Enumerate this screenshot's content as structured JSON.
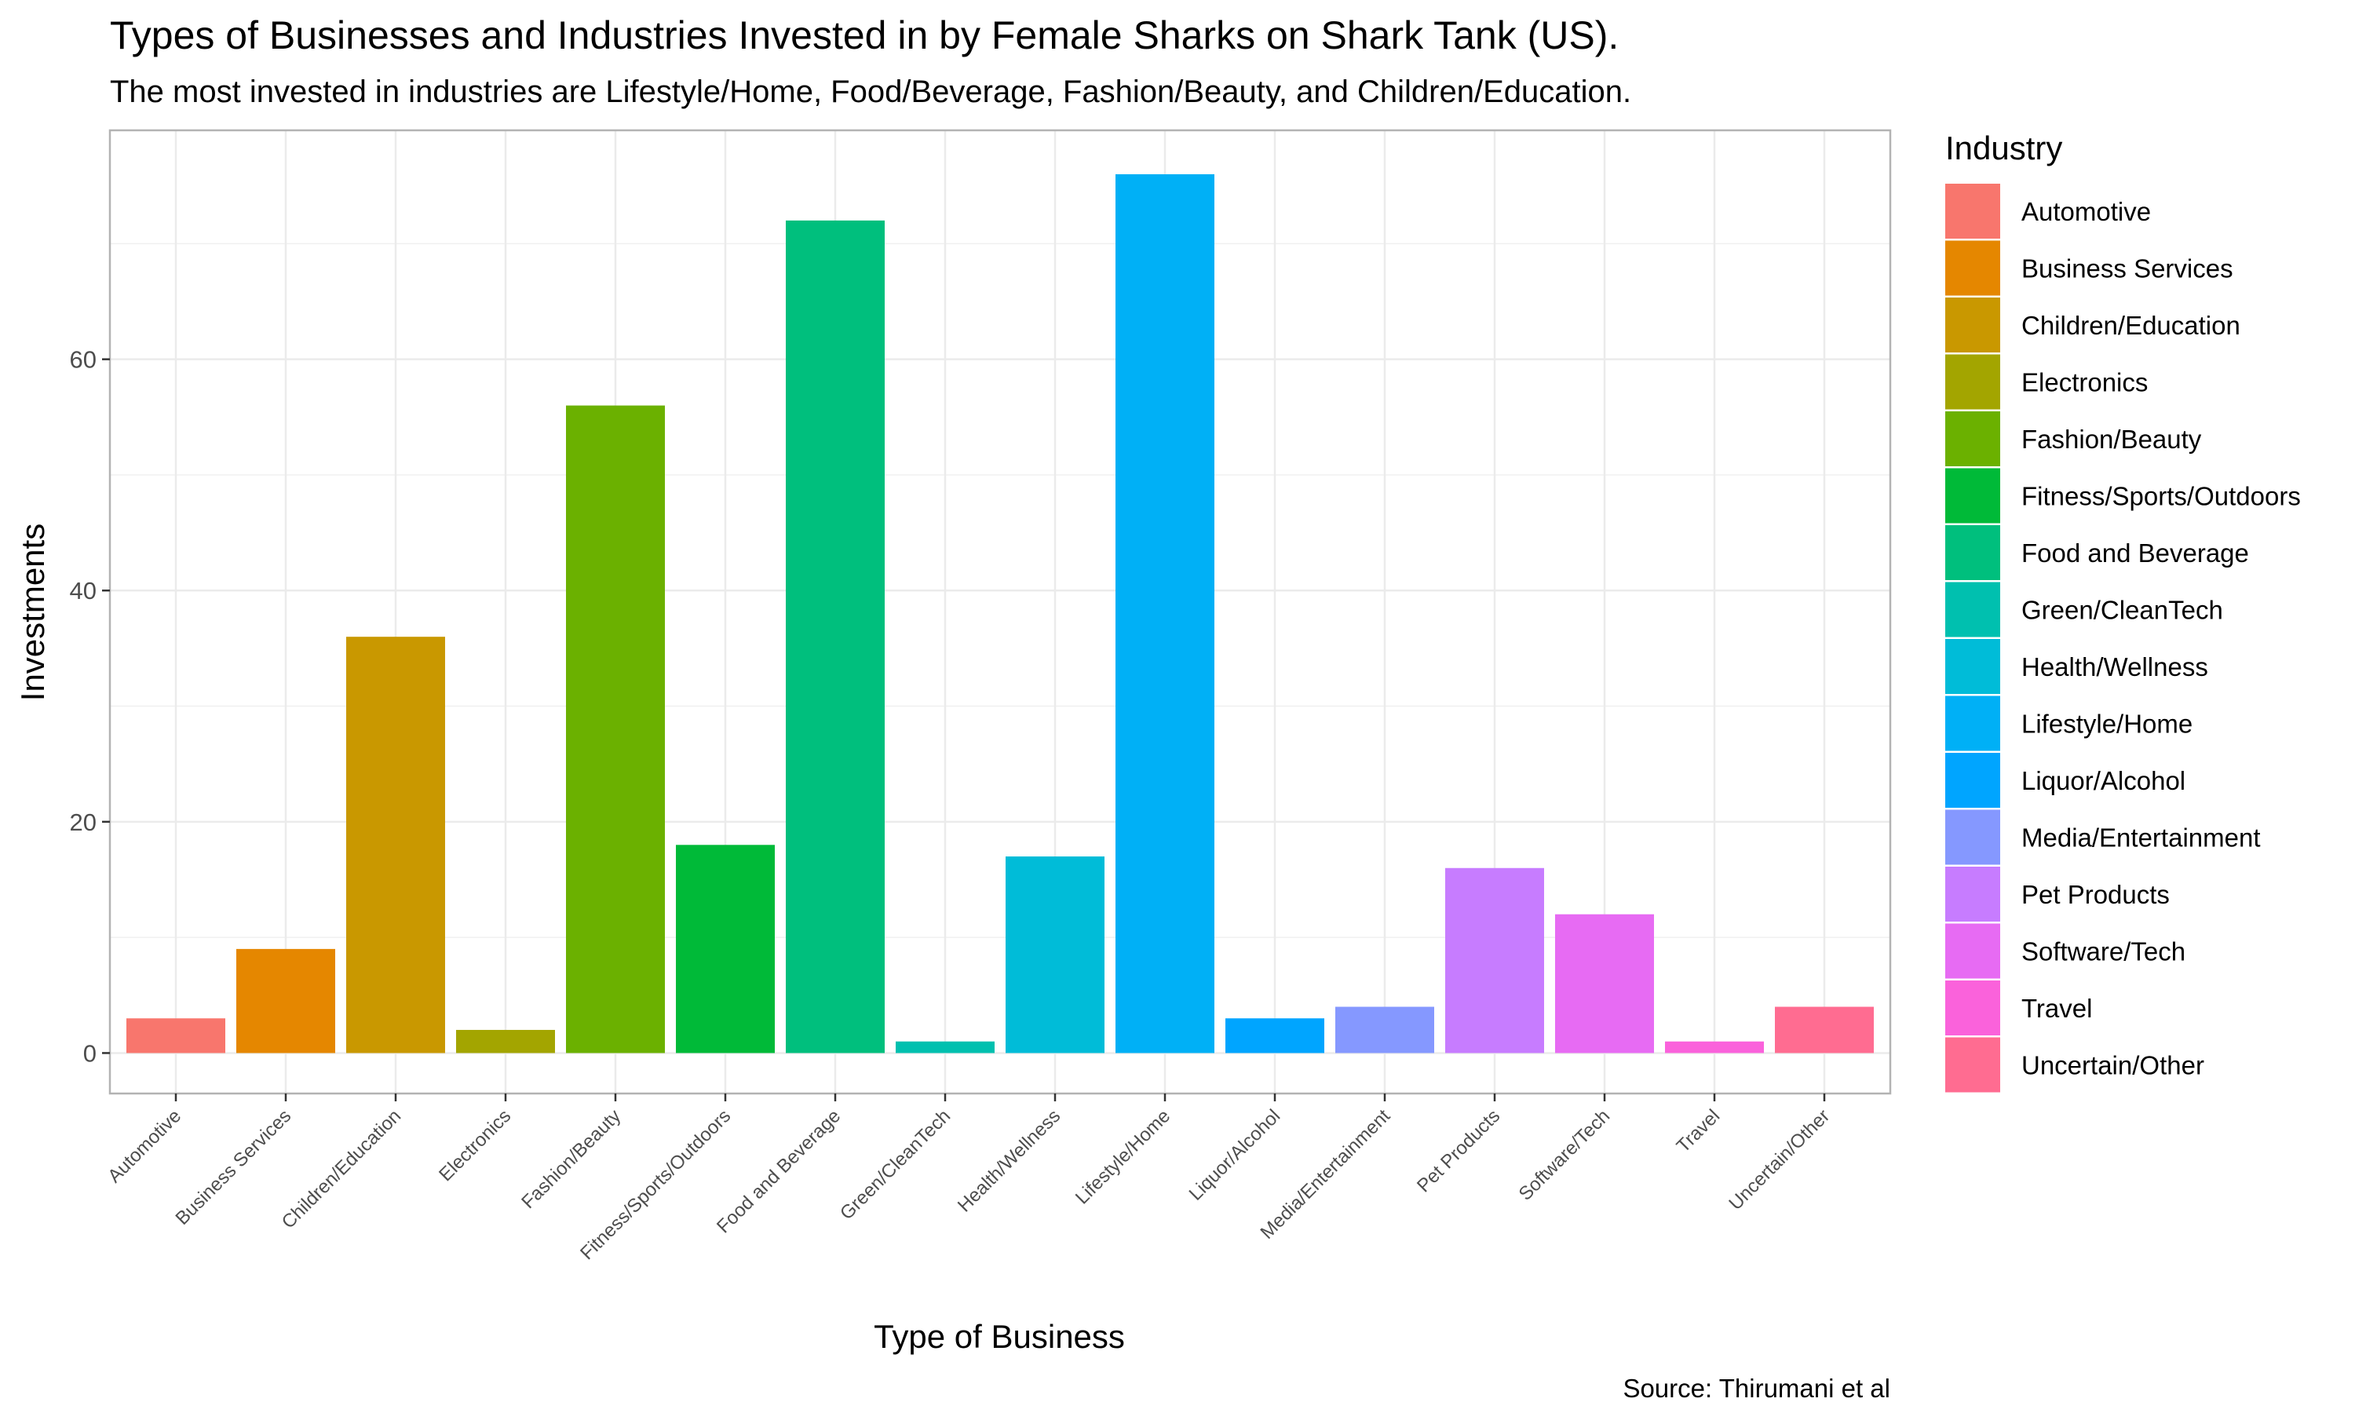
{
  "chart_data": {
    "type": "bar",
    "title": "Types of Businesses and Industries Invested in by Female Sharks on Shark Tank (US).",
    "subtitle": "The most invested in industries are  Lifestyle/Home, Food/Beverage, Fashion/Beauty, and Children/Education.",
    "xlabel": "Type of Business",
    "ylabel": "Investments",
    "caption": "Source: Thirumani et al",
    "legend_title": "Industry",
    "legend_position": "right",
    "grid": true,
    "ylim": [
      -3.5,
      79.8
    ],
    "yticks": [
      0,
      20,
      40,
      60
    ],
    "categories": [
      "Automotive",
      "Business Services",
      "Children/Education",
      "Electronics",
      "Fashion/Beauty",
      "Fitness/Sports/Outdoors",
      "Food and Beverage",
      "Green/CleanTech",
      "Health/Wellness",
      "Lifestyle/Home",
      "Liquor/Alcohol",
      "Media/Entertainment",
      "Pet Products",
      "Software/Tech",
      "Travel",
      "Uncertain/Other"
    ],
    "values": [
      3,
      9,
      36,
      2,
      56,
      18,
      72,
      1,
      17,
      76,
      3,
      4,
      16,
      12,
      1,
      4
    ],
    "colors": [
      "#F8766D",
      "#E58700",
      "#C99800",
      "#A3A500",
      "#6BB100",
      "#00BA38",
      "#00BF7D",
      "#00C0AF",
      "#00BCD8",
      "#00B0F6",
      "#00A5FF",
      "#8598FF",
      "#C77CFF",
      "#E76BF3",
      "#FA62DB",
      "#FF6C91"
    ]
  }
}
